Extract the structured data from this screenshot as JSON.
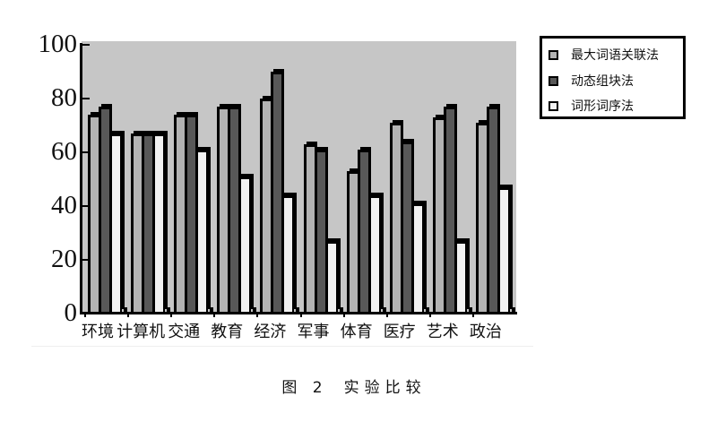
{
  "figure": {
    "caption_label": "图 2",
    "caption_title": "实验比较"
  },
  "chart_data": {
    "type": "bar",
    "style": "3d-clustered-bar",
    "title": "",
    "caption": "图 2 实验比较",
    "xlabel": "",
    "ylabel": "",
    "ylim": [
      0,
      100
    ],
    "yticks": [
      "0",
      "20",
      "40",
      "60",
      "80",
      "100"
    ],
    "grid": false,
    "legend_position": "right-top",
    "categories": [
      "环境",
      "计算机",
      "交通",
      "教育",
      "经济",
      "军事",
      "体育",
      "医疗",
      "艺术",
      "政治"
    ],
    "series": [
      {
        "name": "最大词语关联法",
        "color": "#b3b3b3",
        "values": [
          74,
          67,
          74,
          77,
          80,
          63,
          53,
          71,
          73,
          71
        ]
      },
      {
        "name": "动态组块法",
        "color": "#585858",
        "values": [
          77,
          67,
          74,
          77,
          90,
          61,
          61,
          64,
          77,
          77
        ]
      },
      {
        "name": "词形词序法",
        "color": "#f2f2f2",
        "values": [
          67,
          67,
          61,
          51,
          44,
          27,
          44,
          41,
          27,
          47
        ]
      }
    ]
  },
  "colors": {
    "plot_background": "#c6c6c6",
    "axis": "#000000",
    "page_background": "#ffffff"
  }
}
